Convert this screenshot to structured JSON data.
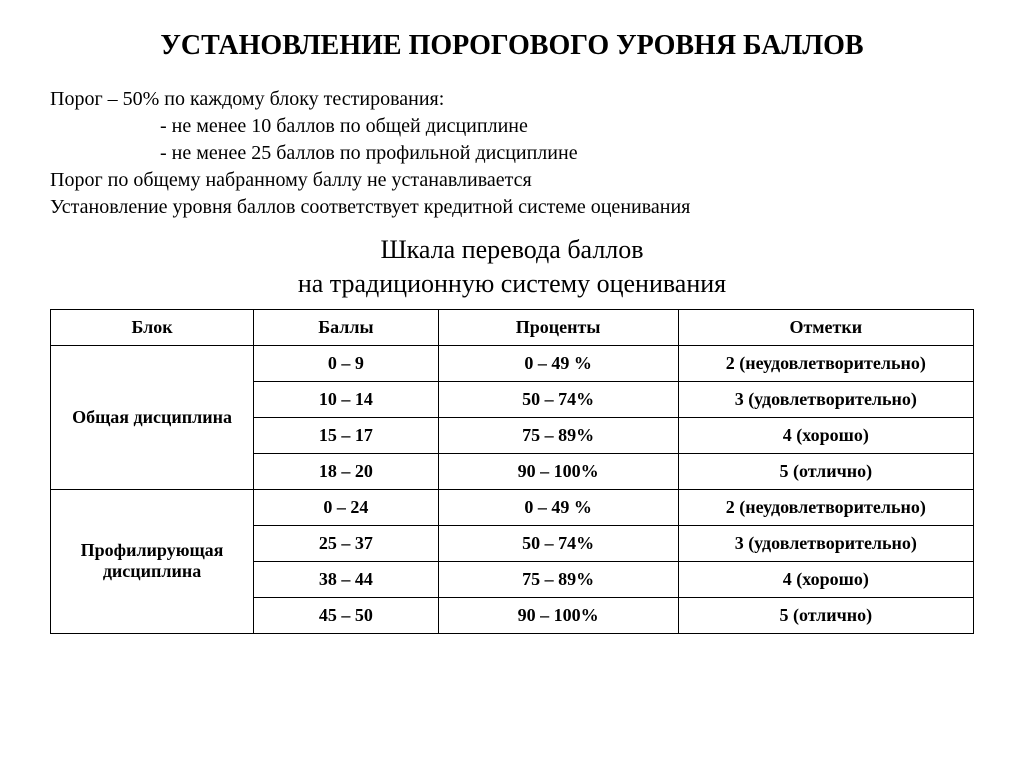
{
  "title": "УСТАНОВЛЕНИЕ ПОРОГОВОГО УРОВНЯ БАЛЛОВ",
  "intro": {
    "line1": "Порог – 50% по каждому блоку тестирования:",
    "bullet1": "-  не менее 10 баллов по общей дисциплине",
    "bullet2": "-  не менее 25 баллов по профильной дисциплине",
    "line2": "Порог по общему набранному баллу не устанавливается",
    "line3": "Установление уровня баллов соответствует кредитной системе оценивания"
  },
  "subtitle": {
    "line1": "Шкала перевода баллов",
    "line2": "на традиционную систему оценивания"
  },
  "table": {
    "headers": {
      "block": "Блок",
      "points": "Баллы",
      "percent": "Проценты",
      "grade": "Отметки"
    },
    "groups": [
      {
        "label": "Общая дисциплина",
        "rows": [
          {
            "points": "0 – 9",
            "percent": "0 – 49 %",
            "grade": "2 (неудовлетворительно)"
          },
          {
            "points": "10 – 14",
            "percent": "50 – 74%",
            "grade": "3 (удовлетворительно)"
          },
          {
            "points": "15 – 17",
            "percent": "75 – 89%",
            "grade": "4 (хорошо)"
          },
          {
            "points": "18 – 20",
            "percent": "90 – 100%",
            "grade": "5 (отлично)"
          }
        ]
      },
      {
        "label": "Профилирующая дисциплина",
        "rows": [
          {
            "points": "0 – 24",
            "percent": "0 – 49 %",
            "grade": "2 (неудовлетворительно)"
          },
          {
            "points": "25 – 37",
            "percent": "50 – 74%",
            "grade": "3 (удовлетворительно)"
          },
          {
            "points": "38 – 44",
            "percent": "75 – 89%",
            "grade": "4 (хорошо)"
          },
          {
            "points": "45 – 50",
            "percent": "90 – 100%",
            "grade": "5 (отлично)"
          }
        ]
      }
    ]
  },
  "styling": {
    "background_color": "#ffffff",
    "text_color": "#000000",
    "border_color": "#000000",
    "font_family": "Times New Roman",
    "title_fontsize": 28,
    "intro_fontsize": 20,
    "subtitle_fontsize": 26,
    "table_fontsize": 18,
    "border_width": 1.5,
    "col_widths_percent": [
      22,
      20,
      26,
      32
    ]
  }
}
